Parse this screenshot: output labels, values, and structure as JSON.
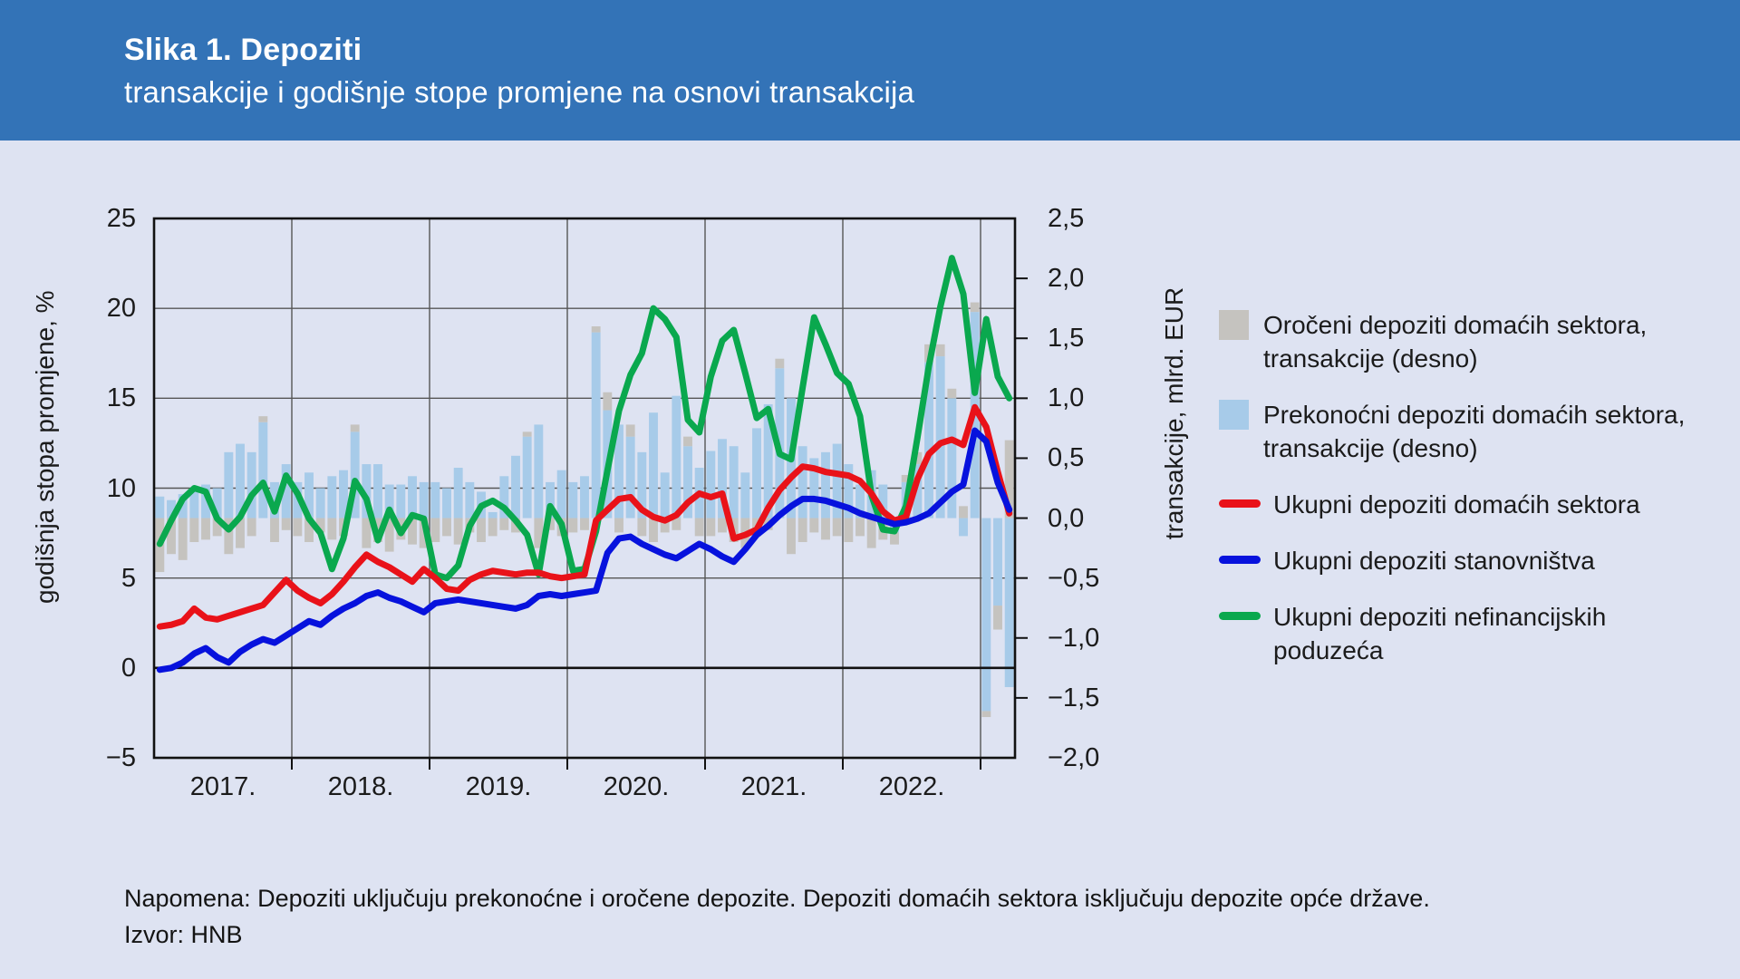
{
  "header": {
    "title_bold": "Slika 1. Depoziti",
    "title_sub": "transakcije i godišnje stope promjene na osnovi transakcija"
  },
  "note": {
    "line1": "Napomena: Depoziti uključuju prekonoćne i oročene depozite. Depoziti domaćih sektora isključuju depozite opće države.",
    "line2": "Izvor: HNB"
  },
  "colors": {
    "header_band": "#3373b7",
    "background": "#dee3f2",
    "bar_overnight": "#a7cbe9",
    "bar_time": "#c5c3bf",
    "line_total": "#e91219",
    "line_households": "#0712dd",
    "line_corporates": "#0aa84e",
    "grid": "#565656",
    "axis": "#111111",
    "text": "#1b1b1b"
  },
  "chart_data": {
    "type": "bar+line combo, monthly Jan 2017 – Mar 2023",
    "x_year_labels": [
      "2017.",
      "2018.",
      "2019.",
      "2020.",
      "2021.",
      "2022."
    ],
    "left_axis": {
      "title": "godišnja stopa promjene, %",
      "min": -5,
      "max": 25,
      "tick_values": [
        25,
        20,
        15,
        10,
        5,
        0,
        -5
      ],
      "tick_labels": [
        "25",
        "20",
        "15",
        "10",
        "5",
        "0",
        "−5"
      ]
    },
    "right_axis": {
      "title": "transakcije, mlrd. EUR",
      "min": -2.0,
      "max": 2.5,
      "tick_values": [
        2.5,
        2.0,
        1.5,
        1.0,
        0.5,
        0.0,
        -0.5,
        -1.0,
        -1.5,
        -2.0
      ],
      "tick_labels": [
        "2,5",
        "2,0",
        "1,5",
        "1,0",
        "0,5",
        "0,0",
        "−0,5",
        "−1,0",
        "−1,5",
        "−2,0"
      ]
    },
    "legend": [
      {
        "type": "square",
        "color": "#c5c3bf",
        "lines": [
          "Oročeni depoziti domaćih sektora,",
          "transakcije (desno)"
        ]
      },
      {
        "type": "square",
        "color": "#a7cbe9",
        "lines": [
          "Prekonoćni depoziti domaćih sektora,",
          "transakcije (desno)"
        ]
      },
      {
        "type": "dash",
        "color": "#e91219",
        "lines": [
          "Ukupni depoziti domaćih sektora"
        ]
      },
      {
        "type": "dash",
        "color": "#0712dd",
        "lines": [
          "Ukupni depoziti stanovništva"
        ]
      },
      {
        "type": "dash",
        "color": "#0aa84e",
        "lines": [
          "Ukupni depoziti nefinancijskih",
          "poduzeća"
        ]
      }
    ],
    "series": {
      "bars": [
        {
          "name": "Prekonoćni depoziti domaćih sektora, transakcije (desno)",
          "axis": "right",
          "color": "#a7cbe9",
          "values": [
            0.18,
            0.15,
            0.2,
            0.22,
            0.28,
            0.25,
            0.55,
            0.62,
            0.55,
            0.8,
            0.3,
            0.45,
            0.3,
            0.38,
            0.25,
            0.35,
            0.4,
            0.72,
            0.45,
            0.45,
            0.28,
            0.28,
            0.35,
            0.3,
            0.3,
            0.25,
            0.42,
            0.3,
            0.22,
            0.05,
            0.35,
            0.52,
            0.68,
            0.78,
            0.3,
            0.4,
            0.3,
            0.35,
            1.55,
            0.9,
            0.78,
            0.68,
            0.55,
            0.88,
            0.38,
            1.02,
            0.6,
            0.42,
            0.56,
            0.66,
            0.6,
            0.38,
            0.75,
            0.95,
            1.25,
            1.0,
            0.6,
            0.5,
            0.55,
            0.62,
            0.45,
            0.28,
            0.4,
            0.28,
            -0.12,
            0.3,
            0.45,
            1.3,
            1.35,
            1.0,
            -0.15,
            1.72,
            -1.61,
            -0.73,
            -1.41
          ]
        },
        {
          "name": "Oročeni depoziti domaćih sektora, transakcije (desno)",
          "axis": "right",
          "color": "#c5c3bf",
          "values": [
            -0.45,
            -0.3,
            -0.35,
            -0.2,
            -0.18,
            -0.15,
            -0.3,
            -0.25,
            -0.15,
            0.05,
            -0.2,
            -0.1,
            -0.15,
            -0.2,
            -0.12,
            -0.18,
            -0.15,
            0.06,
            -0.25,
            -0.2,
            -0.28,
            -0.18,
            -0.22,
            -0.25,
            -0.2,
            -0.15,
            -0.22,
            -0.12,
            -0.2,
            -0.15,
            -0.1,
            -0.12,
            0.04,
            -0.25,
            -0.1,
            -0.15,
            -0.12,
            -0.1,
            0.05,
            0.15,
            -0.12,
            0.1,
            -0.15,
            -0.2,
            -0.12,
            -0.1,
            0.08,
            -0.15,
            -0.15,
            -0.12,
            -0.2,
            -0.25,
            -0.15,
            -0.1,
            0.08,
            -0.3,
            -0.2,
            -0.12,
            -0.18,
            -0.15,
            -0.2,
            -0.15,
            -0.25,
            -0.18,
            -0.1,
            0.06,
            0.1,
            0.15,
            0.1,
            0.08,
            0.1,
            0.08,
            -0.05,
            -0.2,
            0.65
          ]
        }
      ],
      "lines": [
        {
          "name": "Ukupni depoziti nefinancijskih poduzeća",
          "axis": "left",
          "color": "#0aa84e",
          "values": [
            6.9,
            8.2,
            9.4,
            10.0,
            9.8,
            8.3,
            7.7,
            8.4,
            9.6,
            10.3,
            8.7,
            10.7,
            9.7,
            8.3,
            7.5,
            5.5,
            7.2,
            10.4,
            9.4,
            7.1,
            8.8,
            7.5,
            8.5,
            8.3,
            5.2,
            5.0,
            5.7,
            7.9,
            9.0,
            9.3,
            8.9,
            8.2,
            7.4,
            5.2,
            9.0,
            8.0,
            5.4,
            5.5,
            7.6,
            11.0,
            14.3,
            16.3,
            17.5,
            20.0,
            19.4,
            18.4,
            13.8,
            13.1,
            16.2,
            18.2,
            18.8,
            16.4,
            13.9,
            14.4,
            11.9,
            11.6,
            15.6,
            19.5,
            18.0,
            16.4,
            15.8,
            14.0,
            9.6,
            7.7,
            7.6,
            9.0,
            12.8,
            16.8,
            20.1,
            22.8,
            20.8,
            15.3,
            19.4,
            16.2,
            15.0
          ]
        },
        {
          "name": "Ukupni depoziti domaćih sektora",
          "axis": "left",
          "color": "#e91219",
          "values": [
            2.3,
            2.4,
            2.6,
            3.3,
            2.8,
            2.7,
            2.9,
            3.1,
            3.3,
            3.5,
            4.2,
            4.9,
            4.3,
            3.9,
            3.6,
            4.1,
            4.8,
            5.6,
            6.3,
            5.9,
            5.6,
            5.2,
            4.8,
            5.5,
            5.0,
            4.4,
            4.3,
            4.9,
            5.2,
            5.4,
            5.3,
            5.2,
            5.3,
            5.3,
            5.1,
            5.0,
            5.1,
            5.2,
            8.2,
            8.8,
            9.4,
            9.5,
            8.8,
            8.4,
            8.2,
            8.5,
            9.2,
            9.7,
            9.5,
            9.7,
            7.2,
            7.4,
            7.7,
            8.9,
            9.9,
            10.6,
            11.2,
            11.1,
            10.9,
            10.8,
            10.7,
            10.4,
            9.7,
            8.7,
            8.2,
            8.4,
            10.5,
            11.9,
            12.5,
            12.7,
            12.4,
            14.5,
            13.4,
            10.9,
            8.6
          ]
        },
        {
          "name": "Ukupni depoziti stanovništva",
          "axis": "left",
          "color": "#0712dd",
          "values": [
            -0.1,
            0.0,
            0.3,
            0.8,
            1.1,
            0.6,
            0.3,
            0.9,
            1.3,
            1.6,
            1.4,
            1.8,
            2.2,
            2.6,
            2.4,
            2.9,
            3.3,
            3.6,
            4.0,
            4.2,
            3.9,
            3.7,
            3.4,
            3.1,
            3.6,
            3.7,
            3.8,
            3.7,
            3.6,
            3.5,
            3.4,
            3.3,
            3.5,
            4.0,
            4.1,
            4.0,
            4.1,
            4.2,
            4.3,
            6.4,
            7.2,
            7.3,
            6.9,
            6.6,
            6.3,
            6.1,
            6.5,
            6.9,
            6.6,
            6.2,
            5.9,
            6.6,
            7.4,
            7.9,
            8.5,
            9.0,
            9.4,
            9.4,
            9.3,
            9.1,
            8.9,
            8.6,
            8.4,
            8.2,
            8.0,
            8.1,
            8.3,
            8.6,
            9.2,
            9.8,
            10.2,
            13.2,
            12.6,
            10.3,
            8.8
          ]
        }
      ]
    },
    "layout": {
      "grid": true,
      "legend_position": "right",
      "zero_line_axis": "left"
    }
  }
}
